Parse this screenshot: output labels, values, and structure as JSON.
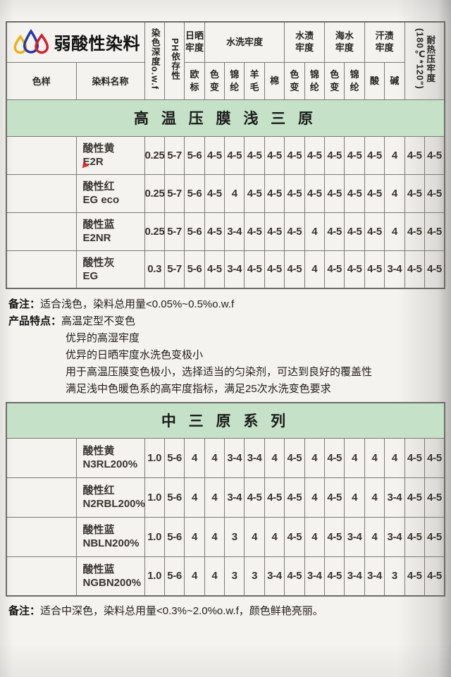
{
  "brand": {
    "name": "弱酸性染料"
  },
  "colors": {
    "banner_green": "#c5e1c8",
    "logo_yellow": "#e9b515",
    "logo_blue": "#2439a5",
    "logo_red": "#cf2030"
  },
  "header": {
    "col_sample": "色样",
    "col_name": "染料名称",
    "col_depth": "染色深度o.w.f",
    "col_ph": "PH依存性",
    "group_sun": "日晒牢度",
    "sub_euro": "欧标",
    "group_wash": "水洗牢度",
    "wash_subs": [
      "色变",
      "锦纶",
      "羊毛",
      "棉"
    ],
    "group_water": "水渍牢度",
    "water_subs": [
      "色变",
      "锦纶"
    ],
    "group_sea": "海水牢度",
    "sea_subs": [
      "色变",
      "锦纶"
    ],
    "group_sweat": "汗渍牢度",
    "sweat_subs": [
      "酸",
      "碱"
    ],
    "col_heat": "耐热压牢度",
    "col_heat_sub": "(180℃*120\")"
  },
  "table1": {
    "banner": "高 温 压 膜 浅 三 原",
    "rows": [
      {
        "swatch": "#eec53e",
        "name1": "酸性黄",
        "name2": "E2R",
        "values": [
          "0.25",
          "5-7",
          "5-6",
          "4-5",
          "4-5",
          "4-5",
          "4-5",
          "4-5",
          "4-5",
          "4-5",
          "4-5",
          "4-5",
          "4",
          "4-5",
          "4-5"
        ]
      },
      {
        "swatch": "#e44b5e",
        "name1": "酸性红",
        "name2": "EG eco",
        "values": [
          "0.25",
          "5-7",
          "5-6",
          "4-5",
          "4",
          "4-5",
          "4-5",
          "4-5",
          "4-5",
          "4-5",
          "4-5",
          "4-5",
          "4",
          "4-5",
          "4-5"
        ]
      },
      {
        "swatch": "#4583cf",
        "name1": "酸性蓝",
        "name2": "E2NR",
        "values": [
          "0.25",
          "5-7",
          "5-6",
          "4-5",
          "3-4",
          "4-5",
          "4-5",
          "4-5",
          "4",
          "4-5",
          "4-5",
          "4-5",
          "4",
          "4-5",
          "4-5"
        ]
      },
      {
        "swatch": "#3a4d5e",
        "name1": "酸性灰",
        "name2": "EG",
        "values": [
          "0.3",
          "5-7",
          "5-6",
          "4-5",
          "3-4",
          "4-5",
          "4-5",
          "4-5",
          "4",
          "4-5",
          "4-5",
          "4-5",
          "3-4",
          "4-5",
          "4-5"
        ]
      }
    ]
  },
  "notes1": {
    "remark_label": "备注：",
    "remark_text": "适合浅色，染料总用量<0.05%~0.5%o.w.f",
    "features_label": "产品特点：",
    "features": [
      "高温定型不变色",
      "优异的高湿牢度",
      "优异的日晒牢度水洗色变极小",
      "用于高温压膜变色极小，选择适当的匀染剂，可达到良好的覆盖性",
      "满足浅中色暖色系的高牢度指标，满足25次水洗变色要求"
    ]
  },
  "table2": {
    "banner": "中 三 原 系 列",
    "rows": [
      {
        "swatch": "#ec8714",
        "name1": "酸性黄",
        "name2": "N3RL200%",
        "values": [
          "1.0",
          "5-6",
          "4",
          "4",
          "3-4",
          "3-4",
          "4",
          "4-5",
          "4",
          "4-5",
          "4",
          "4",
          "4",
          "4-5",
          "4-5"
        ]
      },
      {
        "swatch": "#e31350",
        "name1": "酸性红",
        "name2": "N2RBL200%",
        "values": [
          "1.0",
          "5-6",
          "4",
          "4",
          "3-4",
          "4-5",
          "4-5",
          "4-5",
          "4",
          "4-5",
          "4",
          "4",
          "3-4",
          "4-5",
          "4-5"
        ]
      },
      {
        "swatch": "#2e6cb5",
        "name1": "酸性蓝",
        "name2": "NBLN200%",
        "values": [
          "1.0",
          "5-6",
          "4",
          "4",
          "3",
          "4",
          "4",
          "4-5",
          "4",
          "4-5",
          "3-4",
          "4",
          "3-4",
          "4-5",
          "4-5"
        ]
      },
      {
        "swatch": "#1433a4",
        "name1": "酸性蓝",
        "name2": "NGBN200%",
        "values": [
          "1.0",
          "5-6",
          "4",
          "4",
          "3",
          "3",
          "3-4",
          "4-5",
          "3-4",
          "4-5",
          "3-4",
          "3-4",
          "3",
          "4-5",
          "4-5"
        ]
      }
    ]
  },
  "note2": {
    "label": "备注：",
    "text": "适合中深色，染料总用量<0.3%~2.0%o.w.f，颜色鲜艳亮丽。"
  }
}
